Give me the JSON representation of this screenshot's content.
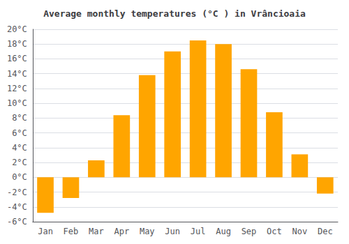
{
  "chart_data": {
    "type": "bar",
    "title": "Average monthly temperatures (°C ) in Vrâncioaia",
    "categories": [
      "Jan",
      "Feb",
      "Mar",
      "Apr",
      "May",
      "Jun",
      "Jul",
      "Aug",
      "Sep",
      "Oct",
      "Nov",
      "Dec"
    ],
    "values": [
      -4.8,
      -2.8,
      2.3,
      8.4,
      13.8,
      17.0,
      18.5,
      18.0,
      14.6,
      8.8,
      3.1,
      -2.2
    ],
    "color": "#FFA500",
    "ylim": [
      -6,
      20
    ],
    "yticks": [
      {
        "value": -6,
        "label": "-6°C"
      },
      {
        "value": -4,
        "label": "-4°C"
      },
      {
        "value": -2,
        "label": "-2°C"
      },
      {
        "value": 0,
        "label": "0°C"
      },
      {
        "value": 2,
        "label": "2°C"
      },
      {
        "value": 4,
        "label": "4°C"
      },
      {
        "value": 6,
        "label": "6°C"
      },
      {
        "value": 8,
        "label": "8°C"
      },
      {
        "value": 10,
        "label": "10°C"
      },
      {
        "value": 12,
        "label": "12°C"
      },
      {
        "value": 14,
        "label": "14°C"
      },
      {
        "value": 16,
        "label": "16°C"
      },
      {
        "value": 18,
        "label": "18°C"
      },
      {
        "value": 20,
        "label": "20°C"
      }
    ],
    "grid": true
  }
}
